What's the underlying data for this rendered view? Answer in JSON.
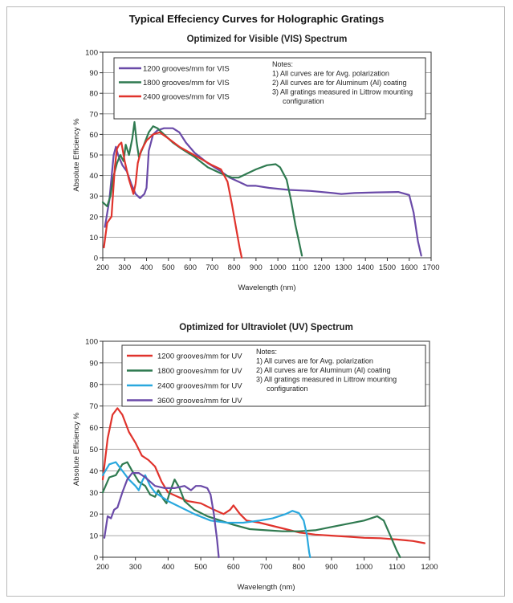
{
  "page_title": "Typical Effeciency Curves for Holographic Gratings",
  "chart_data": [
    {
      "type": "line",
      "title": "Optimized for Visible (VIS) Spectrum",
      "xlabel": "Wavelength (nm)",
      "ylabel": "Absolute Efficiency %",
      "xlim": [
        200,
        1700
      ],
      "ylim": [
        0,
        100
      ],
      "xticks": [
        200,
        300,
        400,
        500,
        600,
        700,
        800,
        900,
        1000,
        1100,
        1200,
        1300,
        1400,
        1500,
        1600,
        1700
      ],
      "yticks": [
        0,
        10,
        20,
        30,
        40,
        50,
        60,
        70,
        80,
        90,
        100
      ],
      "grid": "horizontal",
      "legend_position": "top-left",
      "notes": [
        "Notes:",
        "1) All curves are for Avg. polarization",
        "2) All curves are for Aluminum (Al) coating",
        "3) All gratings measured in Littrow mounting",
        "configuration"
      ],
      "series": [
        {
          "name": "1200 grooves/mm for VIS",
          "color": "#6a4aa8",
          "points": [
            [
              210,
              15
            ],
            [
              230,
              28
            ],
            [
              250,
              50
            ],
            [
              260,
              54
            ],
            [
              270,
              50
            ],
            [
              290,
              45
            ],
            [
              310,
              42
            ],
            [
              330,
              36
            ],
            [
              350,
              31
            ],
            [
              370,
              29
            ],
            [
              390,
              31
            ],
            [
              400,
              34
            ],
            [
              410,
              52
            ],
            [
              430,
              60
            ],
            [
              450,
              62
            ],
            [
              480,
              63
            ],
            [
              520,
              63
            ],
            [
              550,
              61
            ],
            [
              580,
              56
            ],
            [
              620,
              51
            ],
            [
              680,
              46
            ],
            [
              740,
              42
            ],
            [
              780,
              39
            ],
            [
              820,
              37
            ],
            [
              860,
              35
            ],
            [
              900,
              35
            ],
            [
              960,
              34
            ],
            [
              1050,
              33
            ],
            [
              1150,
              32.5
            ],
            [
              1250,
              31.5
            ],
            [
              1290,
              31
            ],
            [
              1350,
              31.5
            ],
            [
              1450,
              31.8
            ],
            [
              1550,
              32
            ],
            [
              1600,
              30.5
            ],
            [
              1620,
              22
            ],
            [
              1640,
              8
            ],
            [
              1655,
              1
            ]
          ]
        },
        {
          "name": "1800 grooves/mm for VIS",
          "color": "#2f7a50",
          "points": [
            [
              200,
              27
            ],
            [
              220,
              25
            ],
            [
              235,
              30
            ],
            [
              250,
              40
            ],
            [
              265,
              46
            ],
            [
              280,
              50
            ],
            [
              295,
              47
            ],
            [
              305,
              55
            ],
            [
              320,
              50
            ],
            [
              335,
              58
            ],
            [
              345,
              66
            ],
            [
              355,
              56
            ],
            [
              365,
              49
            ],
            [
              385,
              54
            ],
            [
              410,
              61
            ],
            [
              430,
              64
            ],
            [
              450,
              63
            ],
            [
              480,
              60
            ],
            [
              520,
              56
            ],
            [
              560,
              53
            ],
            [
              620,
              49
            ],
            [
              680,
              44
            ],
            [
              740,
              41
            ],
            [
              790,
              39
            ],
            [
              820,
              39
            ],
            [
              860,
              41
            ],
            [
              900,
              43
            ],
            [
              950,
              45
            ],
            [
              990,
              45.5
            ],
            [
              1010,
              44
            ],
            [
              1040,
              38
            ],
            [
              1060,
              28
            ],
            [
              1080,
              16
            ],
            [
              1100,
              6
            ],
            [
              1110,
              1
            ]
          ]
        },
        {
          "name": "2400 grooves/mm for VIS",
          "color": "#e0332c",
          "points": [
            [
              205,
              5
            ],
            [
              220,
              17
            ],
            [
              240,
              20
            ],
            [
              255,
              44
            ],
            [
              265,
              53
            ],
            [
              275,
              55
            ],
            [
              285,
              56
            ],
            [
              300,
              47
            ],
            [
              320,
              38
            ],
            [
              340,
              31
            ],
            [
              350,
              36
            ],
            [
              360,
              46
            ],
            [
              375,
              52
            ],
            [
              400,
              57
            ],
            [
              430,
              60
            ],
            [
              460,
              61
            ],
            [
              500,
              58
            ],
            [
              550,
              54
            ],
            [
              600,
              51
            ],
            [
              650,
              48
            ],
            [
              700,
              45
            ],
            [
              740,
              43
            ],
            [
              770,
              37
            ],
            [
              790,
              26
            ],
            [
              810,
              14
            ],
            [
              825,
              5
            ],
            [
              835,
              0
            ]
          ]
        }
      ]
    },
    {
      "type": "line",
      "title": "Optimized for Ultraviolet (UV) Spectrum",
      "xlabel": "Wavelength (nm)",
      "ylabel": "Absolute Efficiency %",
      "xlim": [
        200,
        1200
      ],
      "ylim": [
        0,
        100
      ],
      "xticks": [
        200,
        300,
        400,
        500,
        600,
        700,
        800,
        900,
        1000,
        1100,
        1200
      ],
      "yticks": [
        0,
        10,
        20,
        30,
        40,
        50,
        60,
        70,
        80,
        90,
        100
      ],
      "grid": "horizontal",
      "legend_position": "top-left",
      "notes": [
        "Notes:",
        "1) All curves are for Avg. polarization",
        "2) All curves are for Aluminum (Al) coating",
        "3) All gratings measured in Littrow mounting",
        "configuration"
      ],
      "series": [
        {
          "name": "1200 grooves/mm for UV",
          "color": "#e0332c",
          "points": [
            [
              200,
              36
            ],
            [
              215,
              55
            ],
            [
              230,
              66
            ],
            [
              245,
              69
            ],
            [
              260,
              66
            ],
            [
              280,
              58
            ],
            [
              300,
              53
            ],
            [
              320,
              47
            ],
            [
              340,
              45
            ],
            [
              360,
              42
            ],
            [
              380,
              35
            ],
            [
              400,
              30
            ],
            [
              430,
              28
            ],
            [
              460,
              26
            ],
            [
              500,
              25
            ],
            [
              540,
              22
            ],
            [
              570,
              20
            ],
            [
              590,
              22
            ],
            [
              600,
              24
            ],
            [
              620,
              20
            ],
            [
              640,
              17
            ],
            [
              680,
              16
            ],
            [
              720,
              14.5
            ],
            [
              760,
              13
            ],
            [
              800,
              11.5
            ],
            [
              850,
              10.5
            ],
            [
              900,
              10
            ],
            [
              950,
              9.5
            ],
            [
              1000,
              9
            ],
            [
              1050,
              8.8
            ],
            [
              1100,
              8.2
            ],
            [
              1150,
              7.5
            ],
            [
              1185,
              6.5
            ]
          ]
        },
        {
          "name": "1800 grooves/mm for UV",
          "color": "#2f7a50",
          "points": [
            [
              200,
              30
            ],
            [
              220,
              37
            ],
            [
              240,
              38
            ],
            [
              260,
              43
            ],
            [
              275,
              44
            ],
            [
              290,
              40
            ],
            [
              310,
              35
            ],
            [
              330,
              33
            ],
            [
              345,
              29
            ],
            [
              360,
              28
            ],
            [
              370,
              31
            ],
            [
              385,
              27
            ],
            [
              395,
              25
            ],
            [
              405,
              30
            ],
            [
              420,
              36
            ],
            [
              435,
              32
            ],
            [
              450,
              26
            ],
            [
              480,
              22
            ],
            [
              520,
              19
            ],
            [
              560,
              17
            ],
            [
              600,
              15
            ],
            [
              650,
              13
            ],
            [
              700,
              12.5
            ],
            [
              750,
              12
            ],
            [
              800,
              12
            ],
            [
              850,
              12.5
            ],
            [
              900,
              14
            ],
            [
              950,
              15.5
            ],
            [
              1000,
              17
            ],
            [
              1040,
              19
            ],
            [
              1060,
              17
            ],
            [
              1080,
              10
            ],
            [
              1100,
              3
            ],
            [
              1110,
              0
            ]
          ]
        },
        {
          "name": "2400 grooves/mm for UV",
          "color": "#29a8de",
          "points": [
            [
              200,
              38
            ],
            [
              220,
              43
            ],
            [
              240,
              44
            ],
            [
              260,
              40
            ],
            [
              280,
              36
            ],
            [
              300,
              33
            ],
            [
              310,
              31
            ],
            [
              320,
              35
            ],
            [
              330,
              38
            ],
            [
              345,
              33
            ],
            [
              360,
              30
            ],
            [
              380,
              28
            ],
            [
              400,
              26
            ],
            [
              440,
              23
            ],
            [
              480,
              20
            ],
            [
              530,
              17
            ],
            [
              580,
              16
            ],
            [
              630,
              16
            ],
            [
              680,
              17
            ],
            [
              720,
              18
            ],
            [
              760,
              20
            ],
            [
              780,
              21.5
            ],
            [
              800,
              20.5
            ],
            [
              815,
              17
            ],
            [
              825,
              10
            ],
            [
              832,
              2
            ],
            [
              835,
              0
            ]
          ]
        },
        {
          "name": "3600 grooves/mm for UV",
          "color": "#6a4aa8",
          "points": [
            [
              205,
              9
            ],
            [
              215,
              19
            ],
            [
              225,
              18
            ],
            [
              235,
              22
            ],
            [
              245,
              23
            ],
            [
              260,
              30
            ],
            [
              275,
              36
            ],
            [
              290,
              39
            ],
            [
              310,
              39
            ],
            [
              330,
              37
            ],
            [
              360,
              33
            ],
            [
              390,
              32
            ],
            [
              420,
              32
            ],
            [
              450,
              33
            ],
            [
              470,
              31
            ],
            [
              485,
              33
            ],
            [
              500,
              33
            ],
            [
              520,
              32
            ],
            [
              530,
              29
            ],
            [
              540,
              20
            ],
            [
              550,
              8
            ],
            [
              555,
              0
            ]
          ]
        }
      ]
    }
  ]
}
